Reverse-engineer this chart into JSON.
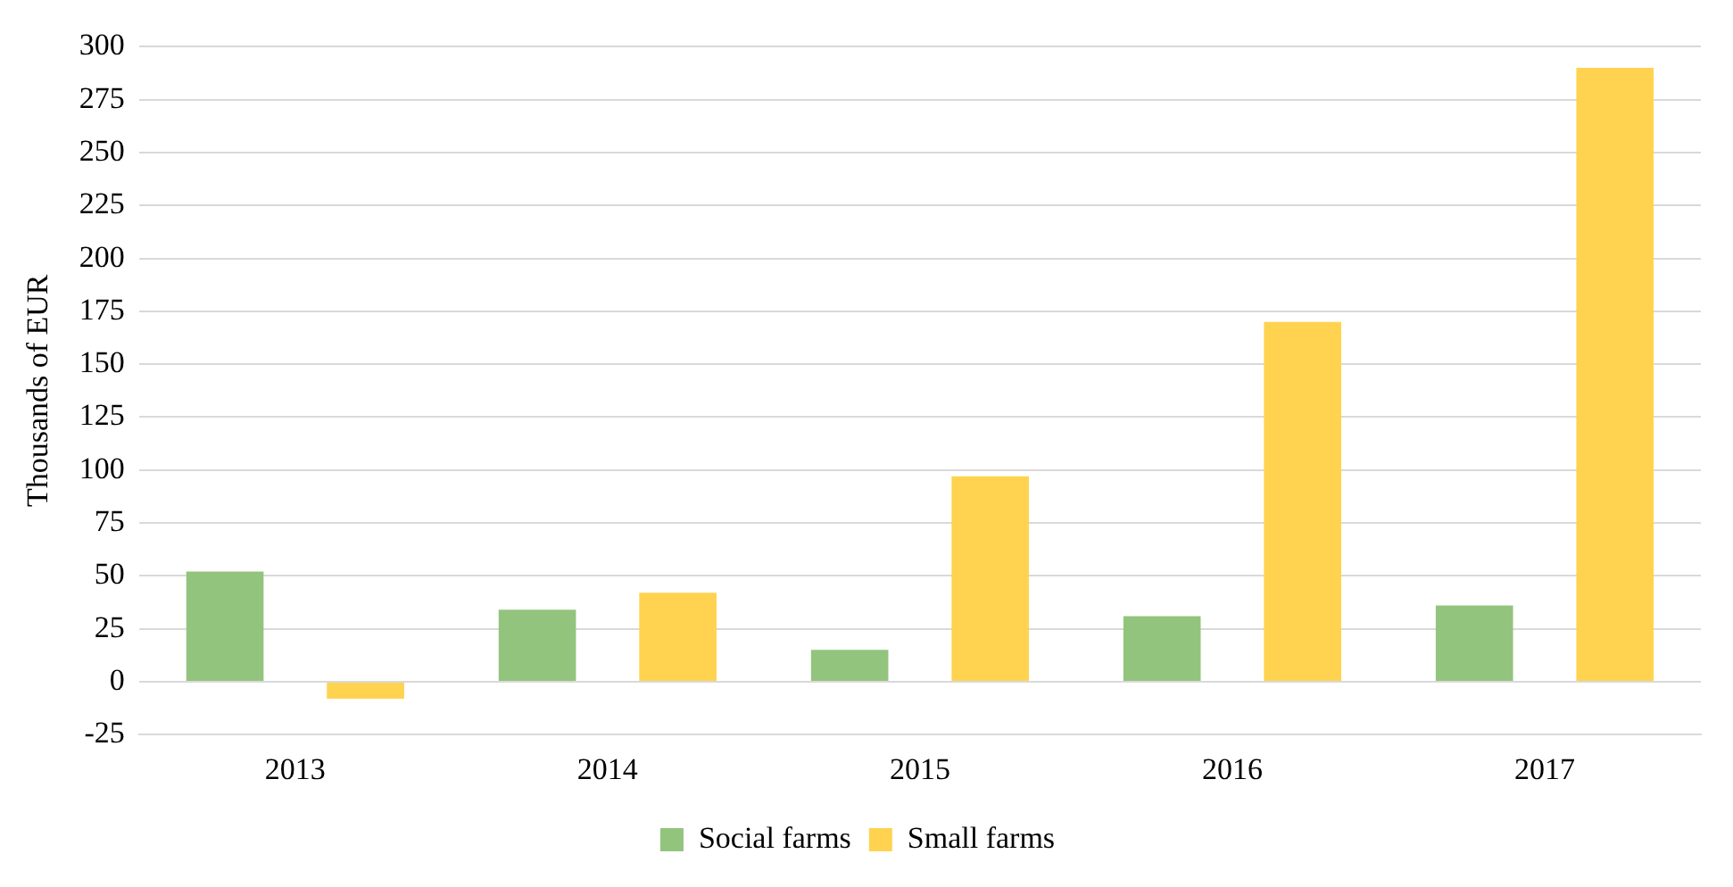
{
  "chart_data": {
    "type": "bar",
    "ylabel": "Thousands of EUR",
    "categories": [
      "2013",
      "2014",
      "2015",
      "2016",
      "2017"
    ],
    "series": [
      {
        "name": "Social farms",
        "color": "#93c47d",
        "values": [
          52,
          34,
          15,
          31,
          36
        ]
      },
      {
        "name": "Small farms",
        "color": "#ffd34f",
        "values": [
          -8,
          42,
          97,
          170,
          290
        ]
      }
    ],
    "ylim": [
      -25,
      300
    ],
    "yticks": [
      -25,
      0,
      25,
      50,
      75,
      100,
      125,
      150,
      175,
      200,
      225,
      250,
      275,
      300
    ],
    "grid": "y",
    "legend": "bottom"
  }
}
